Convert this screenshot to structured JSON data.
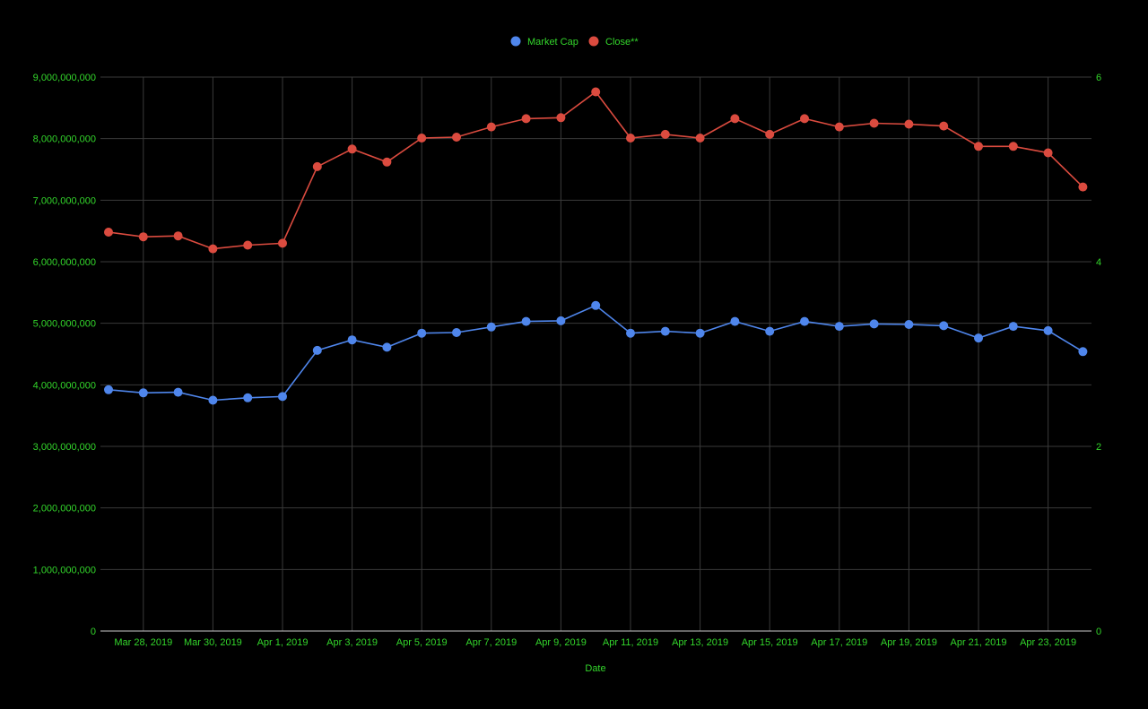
{
  "chart_data": {
    "type": "line",
    "title": "",
    "xlabel": "Date",
    "ylabel": "",
    "ylabel_right": "",
    "x": [
      "2019-03-27",
      "2019-03-28",
      "2019-03-29",
      "2019-03-30",
      "2019-03-31",
      "2019-04-01",
      "2019-04-02",
      "2019-04-03",
      "2019-04-04",
      "2019-04-05",
      "2019-04-06",
      "2019-04-07",
      "2019-04-08",
      "2019-04-09",
      "2019-04-10",
      "2019-04-11",
      "2019-04-12",
      "2019-04-13",
      "2019-04-14",
      "2019-04-15",
      "2019-04-16",
      "2019-04-17",
      "2019-04-18",
      "2019-04-19",
      "2019-04-20",
      "2019-04-21",
      "2019-04-22",
      "2019-04-23",
      "2019-04-24"
    ],
    "x_tick_labels": [
      {
        "x": "2019-03-28",
        "label": "Mar 28, 2019"
      },
      {
        "x": "2019-03-30",
        "label": "Mar 30, 2019"
      },
      {
        "x": "2019-04-01",
        "label": "Apr 1, 2019"
      },
      {
        "x": "2019-04-03",
        "label": "Apr 3, 2019"
      },
      {
        "x": "2019-04-05",
        "label": "Apr 5, 2019"
      },
      {
        "x": "2019-04-07",
        "label": "Apr 7, 2019"
      },
      {
        "x": "2019-04-09",
        "label": "Apr 9, 2019"
      },
      {
        "x": "2019-04-11",
        "label": "Apr 11, 2019"
      },
      {
        "x": "2019-04-13",
        "label": "Apr 13, 2019"
      },
      {
        "x": "2019-04-15",
        "label": "Apr 15, 2019"
      },
      {
        "x": "2019-04-17",
        "label": "Apr 17, 2019"
      },
      {
        "x": "2019-04-19",
        "label": "Apr 19, 2019"
      },
      {
        "x": "2019-04-21",
        "label": "Apr 21, 2019"
      },
      {
        "x": "2019-04-23",
        "label": "Apr 23, 2019"
      }
    ],
    "y_left": {
      "lim": [
        0,
        9000000000
      ],
      "ticks": [
        0,
        1000000000,
        2000000000,
        3000000000,
        4000000000,
        5000000000,
        6000000000,
        7000000000,
        8000000000,
        9000000000
      ],
      "tick_labels": [
        "0",
        "1,000,000,000",
        "2,000,000,000",
        "3,000,000,000",
        "4,000,000,000",
        "5,000,000,000",
        "6,000,000,000",
        "7,000,000,000",
        "8,000,000,000",
        "9,000,000,000"
      ]
    },
    "y_right": {
      "lim": [
        0,
        6
      ],
      "ticks": [
        0,
        2,
        4,
        6
      ],
      "tick_labels": [
        "0",
        "2",
        "4",
        "6"
      ]
    },
    "grid": true,
    "legend_position": "top-center",
    "series": [
      {
        "name": "Market Cap",
        "axis": "left",
        "color": "#4f86ec",
        "values": [
          3920000000,
          3870000000,
          3880000000,
          3750000000,
          3790000000,
          3810000000,
          4560000000,
          4730000000,
          4610000000,
          4840000000,
          4850000000,
          4940000000,
          5030000000,
          5040000000,
          5290000000,
          4840000000,
          4870000000,
          4840000000,
          5030000000,
          4870000000,
          5030000000,
          4950000000,
          4990000000,
          4980000000,
          4960000000,
          4760000000,
          4950000000,
          4880000000,
          4540000000
        ]
      },
      {
        "name": "Close**",
        "axis": "right",
        "color": "#db4b3f",
        "values": [
          4.32,
          4.27,
          4.28,
          4.14,
          4.18,
          4.2,
          5.03,
          5.22,
          5.08,
          5.34,
          5.35,
          5.46,
          5.55,
          5.56,
          5.84,
          5.34,
          5.38,
          5.34,
          5.55,
          5.38,
          5.55,
          5.46,
          5.5,
          5.49,
          5.47,
          5.25,
          5.25,
          5.18,
          4.81
        ]
      }
    ]
  },
  "colors": {
    "background": "#000000",
    "text": "#33d62b",
    "grid": "#3a3a3a",
    "baseline": "#cccccc"
  }
}
